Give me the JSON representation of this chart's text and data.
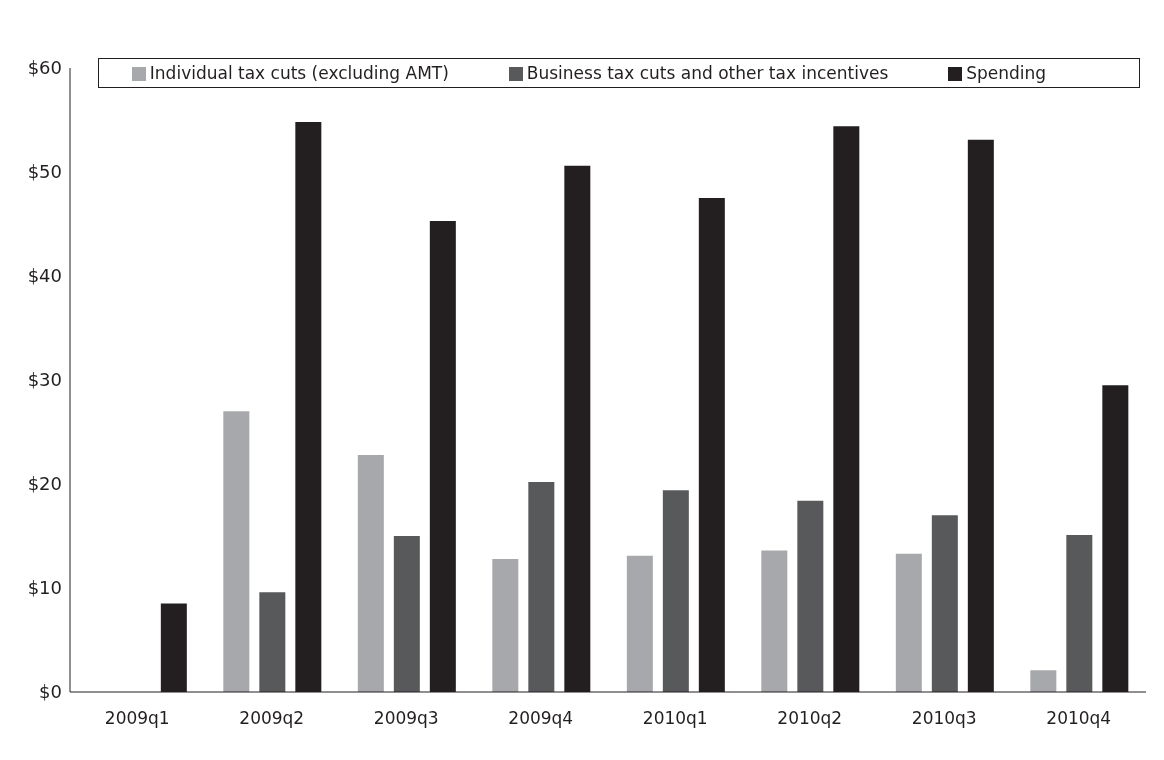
{
  "chart_data": {
    "type": "bar",
    "categories": [
      "2009q1",
      "2009q2",
      "2009q3",
      "2009q4",
      "2010q1",
      "2010q2",
      "2010q3",
      "2010q4"
    ],
    "series": [
      {
        "name": "Individual tax cuts (excluding AMT)",
        "color": "#a7a8ab",
        "values": [
          0,
          27,
          22.8,
          12.8,
          13.1,
          13.6,
          13.3,
          2.1
        ]
      },
      {
        "name": "Business tax cuts and other tax incentives",
        "color": "#58595b",
        "values": [
          0,
          9.6,
          15,
          20.2,
          19.4,
          18.4,
          17,
          15.1
        ]
      },
      {
        "name": "Spending",
        "color": "#231f20",
        "values": [
          8.5,
          54.8,
          45.3,
          50.6,
          47.5,
          54.4,
          53.1,
          29.5
        ]
      }
    ],
    "ylim": [
      0,
      60
    ],
    "yticks": [
      {
        "value": 0,
        "label": "$0"
      },
      {
        "value": 10,
        "label": "$10"
      },
      {
        "value": 20,
        "label": "$20"
      },
      {
        "value": 30,
        "label": "$30"
      },
      {
        "value": 40,
        "label": "$40"
      },
      {
        "value": 50,
        "label": "$50"
      },
      {
        "value": 60,
        "label": "$60"
      }
    ],
    "legend": "top",
    "grid": false
  }
}
